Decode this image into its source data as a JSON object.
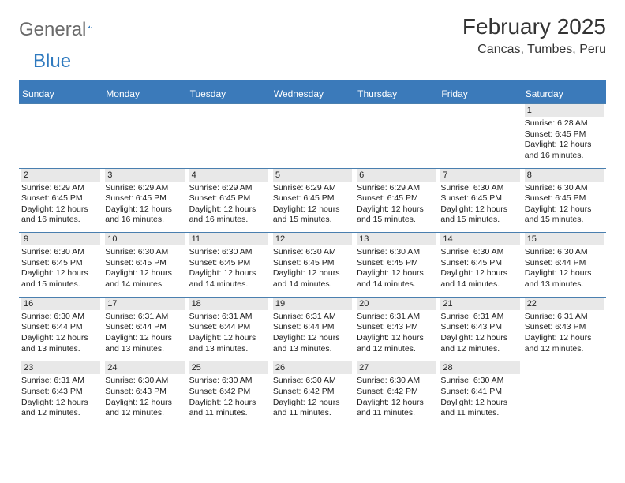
{
  "brand": {
    "general": "General",
    "blue": "Blue",
    "logo_fill": "#2f7abf",
    "text_fill": "#6a6a6a"
  },
  "title": "February 2025",
  "location": "Cancas, Tumbes, Peru",
  "colors": {
    "header_bar": "#3b7aba",
    "row_border": "#4a7faf",
    "daynum_bg": "#e8e8e8",
    "text": "#222222"
  },
  "weekdays": [
    "Sunday",
    "Monday",
    "Tuesday",
    "Wednesday",
    "Thursday",
    "Friday",
    "Saturday"
  ],
  "weeks": [
    [
      null,
      null,
      null,
      null,
      null,
      null,
      {
        "n": "1",
        "l": [
          "Sunrise: 6:28 AM",
          "Sunset: 6:45 PM",
          "Daylight: 12 hours",
          "and 16 minutes."
        ]
      }
    ],
    [
      {
        "n": "2",
        "l": [
          "Sunrise: 6:29 AM",
          "Sunset: 6:45 PM",
          "Daylight: 12 hours",
          "and 16 minutes."
        ]
      },
      {
        "n": "3",
        "l": [
          "Sunrise: 6:29 AM",
          "Sunset: 6:45 PM",
          "Daylight: 12 hours",
          "and 16 minutes."
        ]
      },
      {
        "n": "4",
        "l": [
          "Sunrise: 6:29 AM",
          "Sunset: 6:45 PM",
          "Daylight: 12 hours",
          "and 16 minutes."
        ]
      },
      {
        "n": "5",
        "l": [
          "Sunrise: 6:29 AM",
          "Sunset: 6:45 PM",
          "Daylight: 12 hours",
          "and 15 minutes."
        ]
      },
      {
        "n": "6",
        "l": [
          "Sunrise: 6:29 AM",
          "Sunset: 6:45 PM",
          "Daylight: 12 hours",
          "and 15 minutes."
        ]
      },
      {
        "n": "7",
        "l": [
          "Sunrise: 6:30 AM",
          "Sunset: 6:45 PM",
          "Daylight: 12 hours",
          "and 15 minutes."
        ]
      },
      {
        "n": "8",
        "l": [
          "Sunrise: 6:30 AM",
          "Sunset: 6:45 PM",
          "Daylight: 12 hours",
          "and 15 minutes."
        ]
      }
    ],
    [
      {
        "n": "9",
        "l": [
          "Sunrise: 6:30 AM",
          "Sunset: 6:45 PM",
          "Daylight: 12 hours",
          "and 15 minutes."
        ]
      },
      {
        "n": "10",
        "l": [
          "Sunrise: 6:30 AM",
          "Sunset: 6:45 PM",
          "Daylight: 12 hours",
          "and 14 minutes."
        ]
      },
      {
        "n": "11",
        "l": [
          "Sunrise: 6:30 AM",
          "Sunset: 6:45 PM",
          "Daylight: 12 hours",
          "and 14 minutes."
        ]
      },
      {
        "n": "12",
        "l": [
          "Sunrise: 6:30 AM",
          "Sunset: 6:45 PM",
          "Daylight: 12 hours",
          "and 14 minutes."
        ]
      },
      {
        "n": "13",
        "l": [
          "Sunrise: 6:30 AM",
          "Sunset: 6:45 PM",
          "Daylight: 12 hours",
          "and 14 minutes."
        ]
      },
      {
        "n": "14",
        "l": [
          "Sunrise: 6:30 AM",
          "Sunset: 6:45 PM",
          "Daylight: 12 hours",
          "and 14 minutes."
        ]
      },
      {
        "n": "15",
        "l": [
          "Sunrise: 6:30 AM",
          "Sunset: 6:44 PM",
          "Daylight: 12 hours",
          "and 13 minutes."
        ]
      }
    ],
    [
      {
        "n": "16",
        "l": [
          "Sunrise: 6:30 AM",
          "Sunset: 6:44 PM",
          "Daylight: 12 hours",
          "and 13 minutes."
        ]
      },
      {
        "n": "17",
        "l": [
          "Sunrise: 6:31 AM",
          "Sunset: 6:44 PM",
          "Daylight: 12 hours",
          "and 13 minutes."
        ]
      },
      {
        "n": "18",
        "l": [
          "Sunrise: 6:31 AM",
          "Sunset: 6:44 PM",
          "Daylight: 12 hours",
          "and 13 minutes."
        ]
      },
      {
        "n": "19",
        "l": [
          "Sunrise: 6:31 AM",
          "Sunset: 6:44 PM",
          "Daylight: 12 hours",
          "and 13 minutes."
        ]
      },
      {
        "n": "20",
        "l": [
          "Sunrise: 6:31 AM",
          "Sunset: 6:43 PM",
          "Daylight: 12 hours",
          "and 12 minutes."
        ]
      },
      {
        "n": "21",
        "l": [
          "Sunrise: 6:31 AM",
          "Sunset: 6:43 PM",
          "Daylight: 12 hours",
          "and 12 minutes."
        ]
      },
      {
        "n": "22",
        "l": [
          "Sunrise: 6:31 AM",
          "Sunset: 6:43 PM",
          "Daylight: 12 hours",
          "and 12 minutes."
        ]
      }
    ],
    [
      {
        "n": "23",
        "l": [
          "Sunrise: 6:31 AM",
          "Sunset: 6:43 PM",
          "Daylight: 12 hours",
          "and 12 minutes."
        ]
      },
      {
        "n": "24",
        "l": [
          "Sunrise: 6:30 AM",
          "Sunset: 6:43 PM",
          "Daylight: 12 hours",
          "and 12 minutes."
        ]
      },
      {
        "n": "25",
        "l": [
          "Sunrise: 6:30 AM",
          "Sunset: 6:42 PM",
          "Daylight: 12 hours",
          "and 11 minutes."
        ]
      },
      {
        "n": "26",
        "l": [
          "Sunrise: 6:30 AM",
          "Sunset: 6:42 PM",
          "Daylight: 12 hours",
          "and 11 minutes."
        ]
      },
      {
        "n": "27",
        "l": [
          "Sunrise: 6:30 AM",
          "Sunset: 6:42 PM",
          "Daylight: 12 hours",
          "and 11 minutes."
        ]
      },
      {
        "n": "28",
        "l": [
          "Sunrise: 6:30 AM",
          "Sunset: 6:41 PM",
          "Daylight: 12 hours",
          "and 11 minutes."
        ]
      },
      null
    ]
  ]
}
